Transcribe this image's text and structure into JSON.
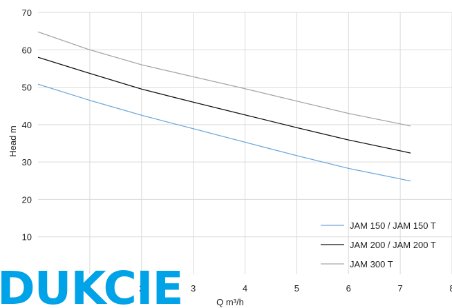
{
  "chart_data": {
    "type": "line",
    "title": "",
    "xlabel": "Q m³/h",
    "ylabel": "Head m",
    "xlim": [
      0,
      8
    ],
    "ylim": [
      0,
      70
    ],
    "xticks": [
      1,
      2,
      3,
      4,
      5,
      6,
      7,
      8
    ],
    "yticks": [
      10,
      20,
      30,
      40,
      50,
      60,
      70
    ],
    "grid": true,
    "legend_position": "bottom-right",
    "series": [
      {
        "name": "JAM 150 / JAM 150 T",
        "color": "#6fa8dc",
        "x": [
          0,
          1,
          2,
          3,
          4,
          5,
          6,
          7,
          7.2
        ],
        "y": [
          50.8,
          46.5,
          42.5,
          38.9,
          35.3,
          31.7,
          28.3,
          25.5,
          24.9
        ]
      },
      {
        "name": "JAM 200 / JAM 200 T",
        "color": "#111111",
        "x": [
          0,
          1,
          2,
          3,
          4,
          5,
          6,
          7,
          7.2
        ],
        "y": [
          58.0,
          53.7,
          49.5,
          46.0,
          42.6,
          39.2,
          35.9,
          33.0,
          32.4
        ]
      },
      {
        "name": "JAM 300 T",
        "color": "#a6a6a6",
        "x": [
          0,
          1,
          2,
          3,
          4,
          5,
          6,
          7,
          7.2
        ],
        "y": [
          64.8,
          60.0,
          56.0,
          52.8,
          49.6,
          46.3,
          43.0,
          40.2,
          39.6
        ]
      }
    ]
  },
  "watermark": {
    "text": "DUKCIE",
    "color": "#00a3e8"
  }
}
